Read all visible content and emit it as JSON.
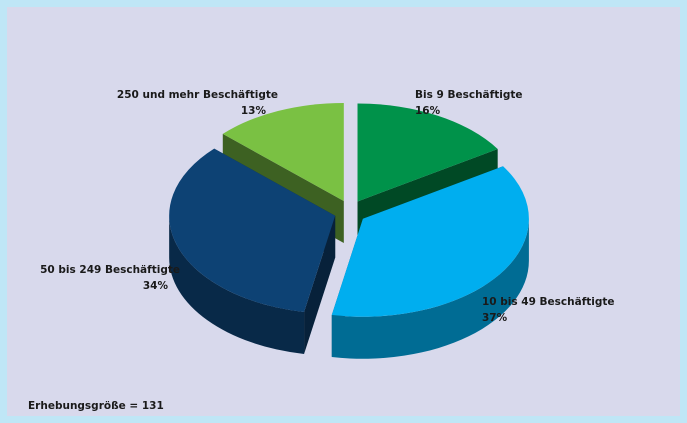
{
  "chart_data": {
    "type": "pie",
    "categories": [
      "Bis 9 Beschäftigte",
      "10 bis 49 Beschäftigte",
      "50 bis 249 Beschäftigte",
      "250 und mehr Beschäftigte"
    ],
    "values": [
      16,
      37,
      34,
      13
    ],
    "value_labels": [
      "16%",
      "37%",
      "34%",
      "13%"
    ],
    "colors": [
      "#00924a",
      "#00aeef",
      "#0d4274",
      "#7ac143"
    ],
    "annotation": "Erhebungsgröße = 131"
  }
}
